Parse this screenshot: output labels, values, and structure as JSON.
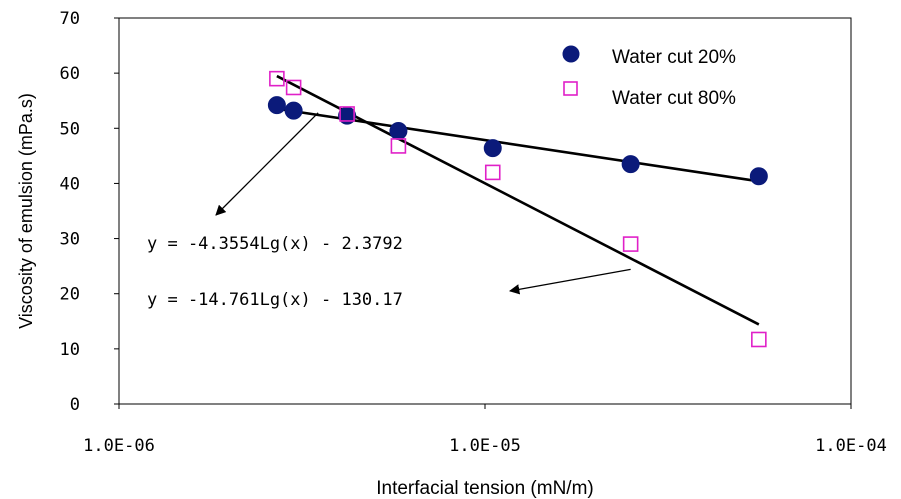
{
  "chart_data": {
    "type": "scatter",
    "xlabel": "Interfacial tension (mN/m)",
    "ylabel": "Viscosity of emulsion (mPa.s)",
    "x_scale": "log",
    "xlim": [
      1e-06,
      0.0001
    ],
    "ylim": [
      0,
      70
    ],
    "x_ticks": [
      "1.0E-06",
      "1.0E-05",
      "1.0E-04"
    ],
    "y_ticks": [
      "0",
      "10",
      "20",
      "30",
      "40",
      "50",
      "60",
      "70"
    ],
    "grid": false,
    "legend_position": "top-right",
    "series": [
      {
        "name": "Water cut 20%",
        "marker": "filled-circle",
        "color": "#0b1a7a",
        "x": [
          2.7e-06,
          3e-06,
          4.2e-06,
          5.8e-06,
          1.05e-05,
          2.5e-05,
          5.6e-05
        ],
        "y": [
          54.2,
          53.2,
          52.3,
          49.5,
          46.4,
          43.5,
          41.3
        ]
      },
      {
        "name": "Water cut 80%",
        "marker": "open-square",
        "color": "#e020c8",
        "x": [
          2.7e-06,
          3e-06,
          4.2e-06,
          5.8e-06,
          1.05e-05,
          2.5e-05,
          5.6e-05
        ],
        "y": [
          59.0,
          57.4,
          52.6,
          46.8,
          42.0,
          29.0,
          11.7
        ]
      }
    ],
    "trendlines": [
      {
        "series": "Water cut 20%",
        "x_range": [
          2.7e-06,
          5.6e-05
        ]
      },
      {
        "series": "Water cut 80%",
        "x_range": [
          2.7e-06,
          5.6e-05
        ]
      }
    ],
    "annotations": [
      {
        "text": "y = -4.3554Lg(x) - 2.3792",
        "arrow_target_x": 3.5e-06,
        "arrow_target_y": 52.8
      },
      {
        "text": "y = -14.761Lg(x) - 130.17",
        "arrow_target_x": 2.5e-05,
        "arrow_target_y": 25.5
      }
    ]
  }
}
